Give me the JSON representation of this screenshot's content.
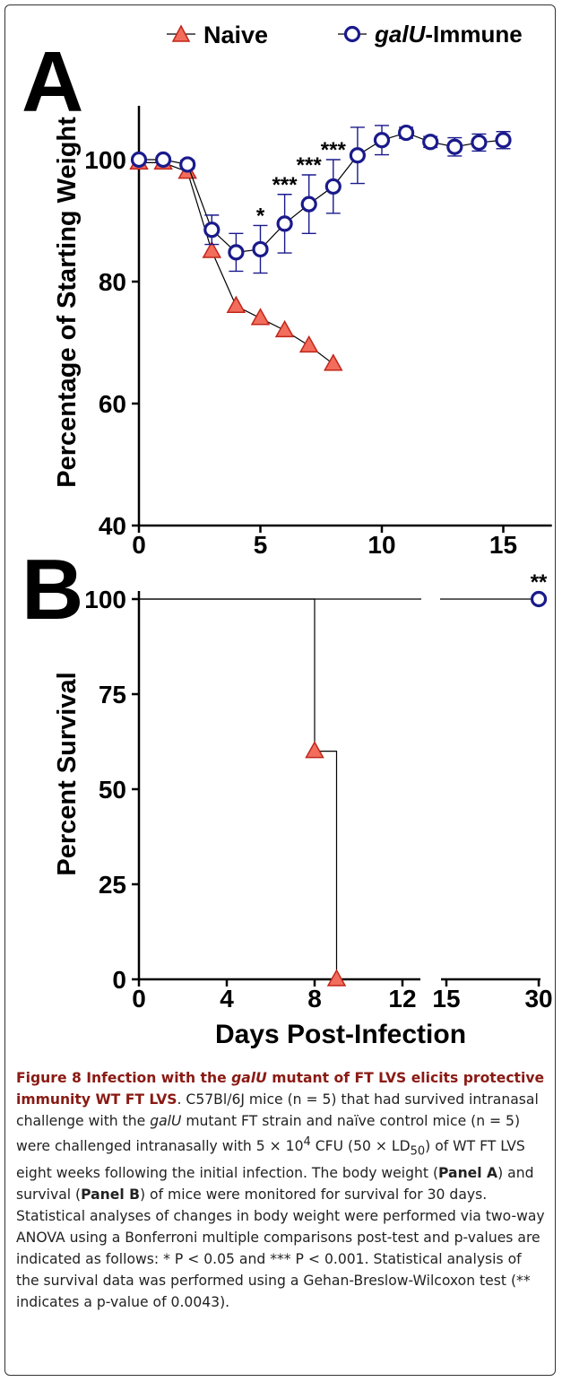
{
  "legend": {
    "naive": "Naive",
    "immune_prefix": "galU",
    "immune_suffix": "-Immune"
  },
  "colors": {
    "naive_fill": "#f26d5b",
    "naive_stroke": "#c0261a",
    "immune_stroke": "#1a1a8c",
    "caption_lead": "#8a1a14"
  },
  "chart_data": [
    {
      "panel": "A",
      "type": "line",
      "ylabel": "Percentage of Starting Weight",
      "xlabel": "",
      "xlim": [
        0,
        17
      ],
      "ylim": [
        40,
        110
      ],
      "xticks": [
        "0",
        "5",
        "10",
        "15"
      ],
      "yticks": [
        "40",
        "60",
        "80",
        "100"
      ],
      "series": [
        {
          "name": "Naive",
          "x": [
            0,
            1,
            2,
            3,
            4,
            5,
            6,
            7,
            8
          ],
          "y": [
            99.5,
            99.5,
            98,
            85,
            76,
            74,
            72,
            69.5,
            66.5
          ]
        },
        {
          "name": "galU-Immune",
          "x": [
            0,
            1,
            2,
            3,
            4,
            5,
            6,
            7,
            8,
            9,
            10,
            11,
            12,
            13,
            14,
            15
          ],
          "y": [
            100,
            100,
            99.2,
            88.5,
            84.8,
            85.3,
            89.5,
            92.7,
            95.6,
            100.7,
            103.2,
            104.4,
            102.9,
            102.1,
            102.8,
            103.2
          ],
          "error": [
            0.5,
            0.5,
            0.7,
            2.4,
            3.1,
            3.9,
            4.8,
            4.8,
            4.4,
            4.6,
            2.4,
            0.9,
            0.9,
            1.5,
            1.4,
            1.4
          ]
        }
      ],
      "annotations": [
        {
          "x": 5,
          "text": "*"
        },
        {
          "x": 6,
          "text": "***"
        },
        {
          "x": 7,
          "text": "***"
        },
        {
          "x": 8,
          "text": "***"
        }
      ]
    },
    {
      "panel": "B",
      "type": "line",
      "subtype": "survival-step",
      "ylabel": "Percent Survival",
      "xlabel": "Days Post-Infection",
      "ylim": [
        0,
        100
      ],
      "xticks": [
        "0",
        "4",
        "8",
        "12",
        "15",
        "30"
      ],
      "yticks": [
        "0",
        "25",
        "50",
        "75",
        "100"
      ],
      "axis_break": true,
      "series": [
        {
          "name": "Naive",
          "steps": [
            [
              0,
              100
            ],
            [
              8,
              100
            ],
            [
              8,
              60
            ],
            [
              9,
              60
            ],
            [
              9,
              0
            ]
          ],
          "markers": [
            [
              8,
              60
            ],
            [
              9,
              0
            ]
          ]
        },
        {
          "name": "galU-Immune",
          "steps": [
            [
              0,
              100
            ],
            [
              30,
              100
            ]
          ],
          "markers": [
            [
              30,
              100
            ]
          ]
        }
      ],
      "annotations": [
        {
          "x": 30,
          "text": "**"
        }
      ]
    }
  ],
  "panel_labels": {
    "a": "A",
    "b": "B"
  },
  "caption": {
    "lead_1": "Figure 8 Infection with the ",
    "lead_italic": "galU",
    "lead_2": " mutant of FT LVS elicits protective immunity WT FT LVS",
    "t1": ". C57Bl/6J mice (n = 5) that had survived intranasal challenge with the ",
    "t1_italic": "galU",
    "t2": " mutant FT strain and naïve control mice (n = 5) were challenged intranasally with 5 × 10",
    "sup": "4",
    "t3": " CFU (50 × LD",
    "sub": "50",
    "t4": ") of WT FT LVS eight weeks following the initial infection. The body weight (",
    "panel_a": "Panel A",
    "t5": ") and survival (",
    "panel_b": "Panel B",
    "t6": ") of mice were monitored for survival for 30 days. Statistical analyses of changes in body weight were performed via two-way ANOVA using a Bonferroni multiple comparisons post-test and p-values are indicated as follows: * P < 0.05 and *** P < 0.001. Statistical analysis of the survival data was performed using a Gehan-Breslow-Wilcoxon test (** indicates a p-value of 0.0043)."
  }
}
